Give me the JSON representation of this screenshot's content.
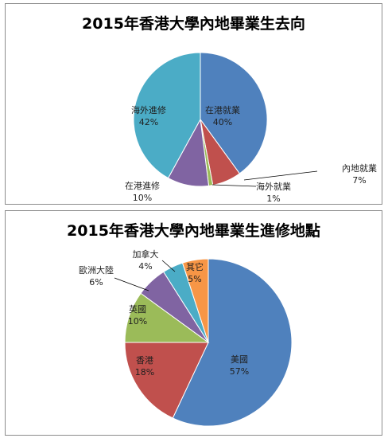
{
  "chart_data": [
    {
      "type": "pie",
      "title": "2015年香港大學內地畢業生去向",
      "categories": [
        "在港就業",
        "內地就業",
        "海外就業",
        "在港進修",
        "海外進修"
      ],
      "values": [
        40,
        7,
        1,
        10,
        42
      ],
      "value_labels": [
        "40%",
        "7%",
        "1%",
        "10%",
        "42%"
      ],
      "colors": [
        "#4f81bd",
        "#c0504d",
        "#9bbb59",
        "#8064a2",
        "#4bacc6"
      ]
    },
    {
      "type": "pie",
      "title": "2015年香港大學內地畢業生進修地點",
      "categories": [
        "美國",
        "香港",
        "英國",
        "歐洲大陸",
        "加拿大",
        "其它"
      ],
      "values": [
        57,
        18,
        10,
        6,
        4,
        5
      ],
      "value_labels": [
        "57%",
        "18%",
        "10%",
        "6%",
        "4%",
        "5%"
      ],
      "colors": [
        "#4f81bd",
        "#c0504d",
        "#9bbb59",
        "#8064a2",
        "#4bacc6",
        "#f79646"
      ]
    }
  ]
}
